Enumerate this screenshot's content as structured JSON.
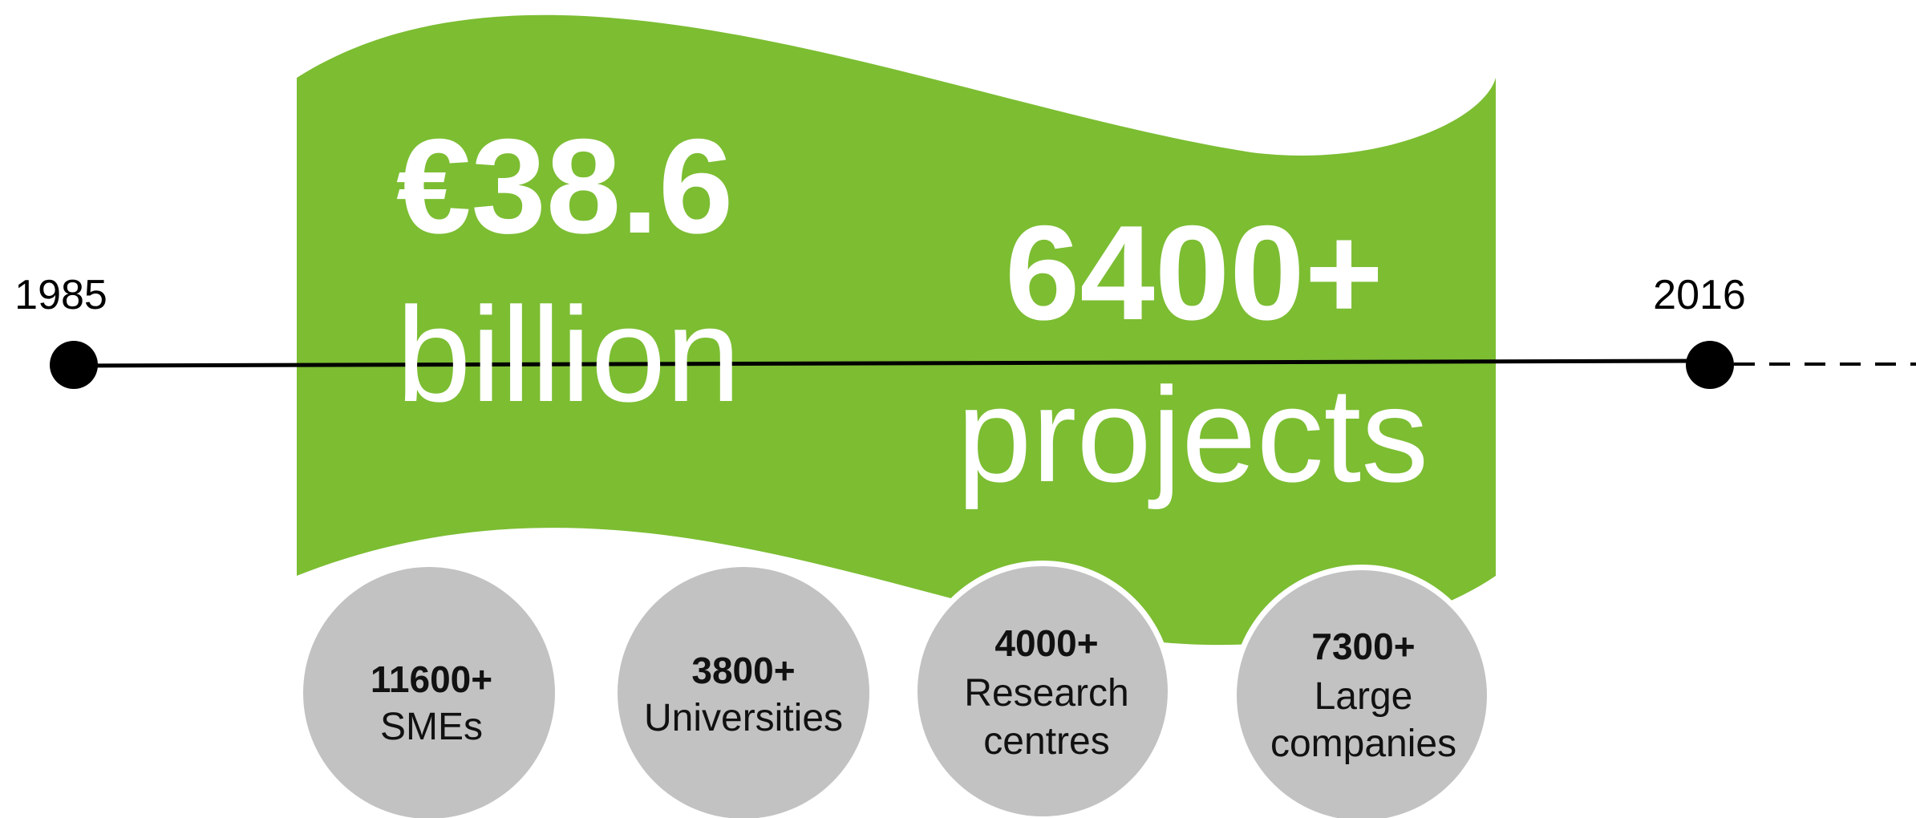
{
  "timeline": {
    "start_year": "1985",
    "end_year": "2016"
  },
  "banner": {
    "funding_amount": "€38.6",
    "funding_unit": "billion",
    "projects_count": "6400+",
    "projects_label": "projects"
  },
  "participants": [
    {
      "count": "11600+",
      "label_lines": [
        "SMEs"
      ]
    },
    {
      "count": "3800+",
      "label_lines": [
        "Universities"
      ]
    },
    {
      "count": "4000+",
      "label_lines": [
        "Research",
        "centres"
      ]
    },
    {
      "count": "7300+",
      "label_lines": [
        "Large",
        "companies"
      ]
    }
  ],
  "colors": {
    "banner": "#7cbd32",
    "circle": "#c2c2c2",
    "circle_text": "#111111",
    "banner_text": "#ffffff",
    "line": "#000000"
  }
}
